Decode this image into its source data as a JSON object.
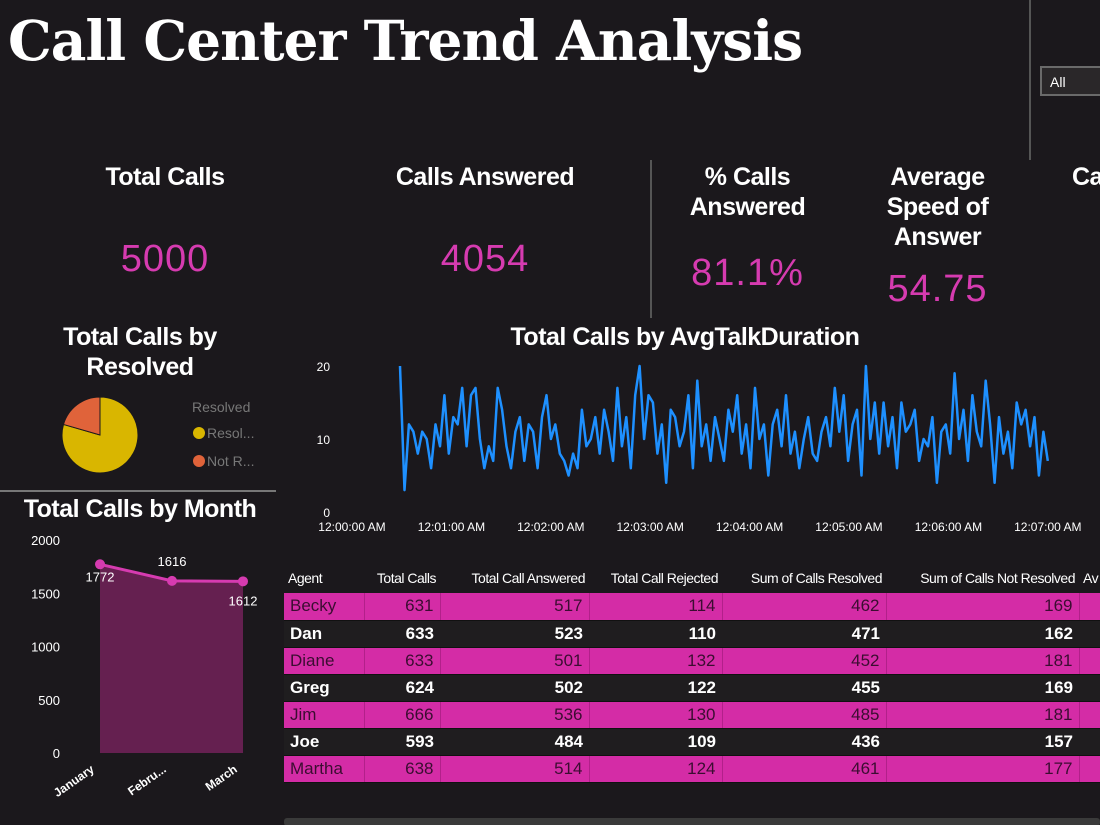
{
  "title": "Call Center Trend Analysis",
  "filter": {
    "selected": "All"
  },
  "kpis": [
    {
      "label": "Total Calls",
      "value": "5000"
    },
    {
      "label": "Calls Answered",
      "value": "4054"
    },
    {
      "label": "% Calls Answered",
      "value": "81.1%"
    },
    {
      "label": "Average Speed of Answer",
      "value": "54.75"
    },
    {
      "label": "Ca"
    }
  ],
  "colors": {
    "accent": "#d63bb0",
    "line": "#1e90ff",
    "resolved": "#d9b600",
    "not_resolved": "#e0633a",
    "area": "#652050"
  },
  "chart_data": [
    {
      "type": "pie",
      "title": "Total Calls by Resolved",
      "legend_title": "Resolved",
      "legend_placement": "right",
      "slices": [
        {
          "name": "Resol...",
          "value": 3222
        },
        {
          "name": "Not R...",
          "value": 832
        }
      ]
    },
    {
      "type": "line",
      "title": "Total Calls by AvgTalkDuration",
      "ylim": [
        0,
        20
      ],
      "yticks": [
        "0",
        "10",
        "20"
      ],
      "xticks": [
        "12:00:00 AM",
        "12:01:00 AM",
        "12:02:00 AM",
        "12:03:00 AM",
        "12:04:00 AM",
        "12:05:00 AM",
        "12:06:00 AM",
        "12:07:00 AM"
      ],
      "x_range": [
        "12:00:29 AM",
        "12:07:00 AM"
      ],
      "values": [
        20,
        3,
        12,
        11,
        8,
        11,
        10,
        6,
        12,
        9,
        16,
        8,
        13,
        12,
        17,
        9,
        16,
        17,
        10,
        6,
        9,
        7,
        17,
        14,
        9,
        6,
        11,
        13,
        7,
        12,
        11,
        6,
        13,
        16,
        10,
        12,
        8,
        7,
        5,
        8,
        6,
        14,
        9,
        10,
        13,
        8,
        14,
        11,
        7,
        17,
        9,
        13,
        6,
        16,
        20,
        10,
        16,
        15,
        8,
        12,
        4,
        14,
        13,
        9,
        11,
        16,
        6,
        18,
        9,
        12,
        7,
        13,
        10,
        7,
        14,
        11,
        16,
        8,
        12,
        6,
        17,
        10,
        12,
        5,
        12,
        14,
        9,
        16,
        8,
        11,
        6,
        10,
        13,
        8,
        7,
        11,
        13,
        9,
        17,
        11,
        16,
        7,
        12,
        14,
        5,
        20,
        10,
        15,
        8,
        15,
        9,
        13,
        6,
        15,
        11,
        12,
        14,
        7,
        10,
        9,
        13,
        4,
        11,
        12,
        8,
        19,
        10,
        14,
        7,
        16,
        11,
        9,
        18,
        12,
        4,
        13,
        8,
        11,
        6,
        15,
        12,
        14,
        9,
        13,
        5,
        11,
        7
      ]
    },
    {
      "type": "area",
      "title": "Total Calls by Month",
      "categories": [
        "January",
        "Febru...",
        "March"
      ],
      "values": [
        1772,
        1616,
        1612
      ],
      "data_labels": [
        "1772",
        "1616",
        "1612"
      ],
      "ylim": [
        0,
        2000
      ],
      "yticks": [
        "0",
        "500",
        "1000",
        "1500",
        "2000"
      ]
    }
  ],
  "table": {
    "columns": [
      "Agent",
      "Total Calls",
      "Total Call Answered",
      "Total Call Rejected",
      "Sum of Calls Resolved",
      "Sum of Calls Not Resolved",
      "Av"
    ],
    "rows": [
      [
        "Becky",
        "631",
        "517",
        "114",
        "462",
        "169"
      ],
      [
        "Dan",
        "633",
        "523",
        "110",
        "471",
        "162"
      ],
      [
        "Diane",
        "633",
        "501",
        "132",
        "452",
        "181"
      ],
      [
        "Greg",
        "624",
        "502",
        "122",
        "455",
        "169"
      ],
      [
        "Jim",
        "666",
        "536",
        "130",
        "485",
        "181"
      ],
      [
        "Joe",
        "593",
        "484",
        "109",
        "436",
        "157"
      ],
      [
        "Martha",
        "638",
        "514",
        "124",
        "461",
        "177"
      ]
    ]
  }
}
